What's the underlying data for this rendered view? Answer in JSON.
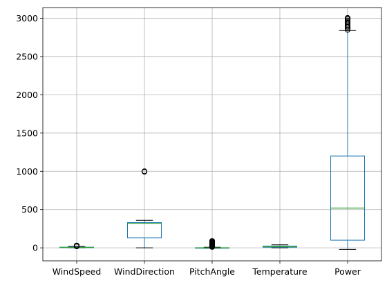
{
  "chart_data": {
    "type": "boxplot",
    "title": "",
    "xlabel": "",
    "ylabel": "",
    "ylim": [
      -170,
      3140
    ],
    "yticks": [
      0,
      500,
      1000,
      1500,
      2000,
      2500,
      3000
    ],
    "grid": true,
    "colors": {
      "box": "#1f77b4",
      "median": "#2ca02c",
      "whisker": "#1f77b4",
      "cap": "#000000",
      "grid": "#b0b0b0",
      "flier": "#000000"
    },
    "categories": [
      "WindSpeed",
      "WindDirection",
      "PitchAngle",
      "Temperature",
      "Power"
    ],
    "boxes": [
      {
        "name": "WindSpeed",
        "whislo": 0,
        "q1": 3,
        "med": 6,
        "q3": 9,
        "whishi": 18,
        "fliers": [
          20,
          22,
          24,
          26,
          28,
          30
        ]
      },
      {
        "name": "WindDirection",
        "whislo": 0,
        "q1": 130,
        "med": 320,
        "q3": 330,
        "whishi": 360,
        "fliers": [
          995,
          1000
        ]
      },
      {
        "name": "PitchAngle",
        "whislo": -5,
        "q1": -2,
        "med": 0,
        "q3": 2,
        "whishi": 8,
        "fliers": [
          12,
          20,
          30,
          40,
          50,
          60,
          70,
          80,
          90
        ]
      },
      {
        "name": "Temperature",
        "whislo": 0,
        "q1": 8,
        "med": 15,
        "q3": 22,
        "whishi": 40,
        "fliers": []
      },
      {
        "name": "Power",
        "whislo": -20,
        "q1": 100,
        "med": 520,
        "q3": 1200,
        "whishi": 2840,
        "fliers": [
          2850,
          2870,
          2890,
          2910,
          2930,
          2950,
          2970,
          2990,
          3005
        ]
      }
    ]
  }
}
